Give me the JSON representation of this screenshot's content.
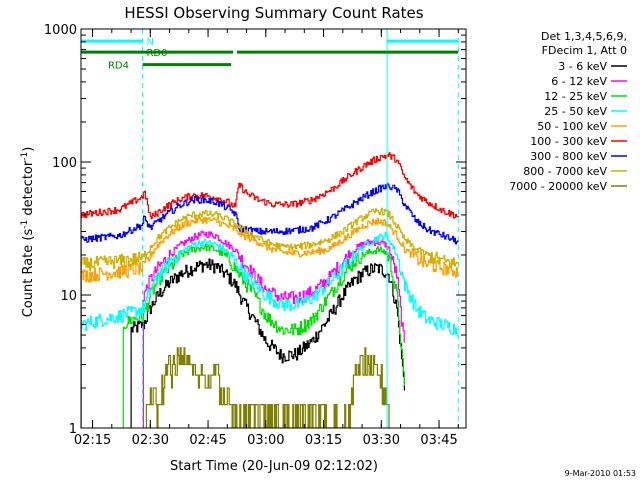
{
  "chart_data": {
    "type": "line",
    "title": "HESSI Observing Summary Count Rates",
    "xlabel": "Start Time (20-Jun-09 02:12:02)",
    "ylabel_main": "Count Rate (s",
    "ylabel_sup1": "-1",
    "ylabel_mid": " detector",
    "ylabel_sup2": "-1",
    "ylabel_end": ")",
    "x_unit": "minutes since 02:12",
    "xlim": [
      0,
      100
    ],
    "ylim": [
      1,
      1000
    ],
    "yscale": "log",
    "x_ticks": [
      {
        "label": "02:15",
        "value": 3
      },
      {
        "label": "02:30",
        "value": 18
      },
      {
        "label": "02:45",
        "value": 33
      },
      {
        "label": "03:00",
        "value": 48
      },
      {
        "label": "03:15",
        "value": 63
      },
      {
        "label": "03:30",
        "value": 78
      },
      {
        "label": "03:45",
        "value": 93
      }
    ],
    "y_ticks": [
      {
        "label": "1",
        "value": 1
      },
      {
        "label": "10",
        "value": 10
      },
      {
        "label": "100",
        "value": 100
      },
      {
        "label": "1000",
        "value": 1000
      }
    ],
    "legend_header": [
      "Det 1,3,4,5,6,9,",
      "FDecim 1, Att 0"
    ],
    "legend_placement": "right",
    "vlines_solid": [
      0,
      79.5
    ],
    "vlines_dashed": [
      16,
      98
    ],
    "flags": [
      {
        "label": "N",
        "color": "#00ffff",
        "segments": [
          [
            0,
            16
          ],
          [
            79.5,
            98
          ]
        ],
        "level": 810,
        "label_x": 17
      },
      {
        "label": "RD0",
        "color": "#008000",
        "segments": [
          [
            0,
            39.5
          ],
          [
            40.5,
            98
          ]
        ],
        "level": 670,
        "label_x": 17
      },
      {
        "label": "RD4",
        "color": "#008000",
        "segments": [
          [
            16,
            39
          ]
        ],
        "level": 540,
        "label_x": 7
      }
    ],
    "series": [
      {
        "name": "3 - 6 keV",
        "color": "#000000",
        "x": [
          13,
          16.2,
          18,
          20,
          23,
          26,
          29,
          32,
          35,
          38,
          40,
          42,
          45,
          48,
          52,
          56,
          60,
          64,
          68,
          71,
          73,
          75,
          77,
          79,
          80,
          82,
          84
        ],
        "y": [
          5.5,
          6,
          8,
          10,
          12.5,
          14.5,
          16,
          17,
          16.5,
          14,
          12,
          9,
          6.5,
          4.5,
          3.5,
          3.6,
          4.5,
          6.5,
          10,
          13,
          14.5,
          15.5,
          16,
          15,
          14,
          8,
          2
        ]
      },
      {
        "name": "6 - 12 keV",
        "color": "#ff00ff",
        "x": [
          16.2,
          18,
          20,
          23,
          26,
          29,
          32,
          35,
          38,
          40,
          42,
          45,
          48,
          52,
          56,
          60,
          64,
          68,
          71,
          73,
          75,
          77,
          79,
          80,
          82,
          84
        ],
        "y": [
          10,
          13,
          16,
          20,
          24,
          27,
          29,
          28,
          24,
          22,
          18,
          14,
          11,
          9.5,
          9.5,
          10.5,
          13,
          18,
          22,
          24,
          25,
          25,
          24,
          22,
          14,
          4
        ]
      },
      {
        "name": "12 - 25 keV",
        "color": "#00e000",
        "x": [
          11,
          13,
          16.2,
          18,
          20,
          23,
          26,
          29,
          32,
          35,
          38,
          40,
          42,
          45,
          48,
          52,
          56,
          60,
          64,
          68,
          71,
          73,
          75,
          77,
          79,
          80,
          82,
          84
        ],
        "y": [
          6,
          6.5,
          7,
          10,
          13,
          16,
          20,
          22,
          23,
          22,
          19,
          16,
          13,
          10,
          7,
          5.5,
          5.5,
          6.5,
          9.5,
          14,
          18,
          20,
          21,
          22,
          21,
          19,
          10,
          2
        ]
      },
      {
        "name": "25 - 50 keV",
        "color": "#00ffff",
        "x": [
          0,
          5,
          10,
          14,
          16.2,
          18,
          20,
          23,
          26,
          29,
          32,
          35,
          38,
          40,
          42,
          45,
          48,
          52,
          56,
          60,
          64,
          68,
          71,
          73,
          75,
          77,
          79,
          80,
          82,
          84,
          87,
          90,
          94,
          98
        ],
        "y": [
          6,
          6.5,
          7,
          7.5,
          8,
          11,
          14,
          18,
          21,
          24,
          25,
          24,
          21,
          18,
          15,
          12,
          10,
          8.5,
          8.5,
          9.5,
          12,
          16,
          20,
          23,
          25,
          27,
          28,
          26,
          20,
          12,
          8,
          6.5,
          6,
          5.5
        ]
      },
      {
        "name": "50 - 100 keV",
        "color": "#ffa000",
        "x": [
          0,
          10,
          16.2,
          18,
          20,
          23,
          26,
          29,
          32,
          35,
          38,
          40,
          42,
          45,
          48,
          52,
          56,
          60,
          64,
          68,
          71,
          73,
          75,
          77,
          79,
          80,
          82,
          84,
          87,
          90,
          94,
          98
        ],
        "y": [
          14,
          15,
          16,
          20,
          24,
          29,
          33,
          36,
          37,
          36,
          33,
          31,
          28,
          26,
          23,
          21,
          20.5,
          21,
          22,
          26,
          30,
          33,
          35,
          36,
          35,
          33,
          28,
          22,
          19,
          17,
          16,
          15
        ]
      },
      {
        "name": "100 - 300 keV",
        "color": "#ff0000",
        "x": [
          0,
          10,
          16,
          16.2,
          18,
          20,
          23,
          26,
          29,
          32,
          35,
          38,
          40,
          41,
          43,
          46,
          50,
          55,
          60,
          65,
          70,
          74,
          78,
          80,
          82,
          84,
          87,
          90,
          94,
          98
        ],
        "y": [
          40,
          44,
          55,
          63,
          38,
          42,
          48,
          53,
          56,
          56,
          54,
          50,
          46,
          68,
          58,
          52,
          48,
          48,
          52,
          62,
          80,
          96,
          110,
          112,
          104,
          76,
          58,
          50,
          43,
          39
        ]
      },
      {
        "name": "300 - 800 keV",
        "color": "#0000ff",
        "x": [
          0,
          10,
          16,
          16.2,
          18,
          20,
          23,
          26,
          29,
          32,
          35,
          38,
          40,
          41,
          43,
          46,
          50,
          55,
          60,
          65,
          70,
          74,
          78,
          80,
          82,
          84,
          87,
          90,
          94,
          98
        ],
        "y": [
          26,
          28,
          34,
          38,
          32,
          36,
          42,
          48,
          52,
          52,
          50,
          45,
          41,
          32,
          31,
          30,
          30,
          30.5,
          32,
          38,
          47,
          56,
          64,
          66,
          62,
          48,
          36,
          31,
          28,
          25
        ]
      },
      {
        "name": "800 - 7000 keV",
        "color": "#d0b000",
        "x": [
          0,
          10,
          16.2,
          18,
          20,
          23,
          26,
          29,
          32,
          35,
          38,
          40,
          42,
          45,
          48,
          52,
          56,
          60,
          64,
          68,
          71,
          73,
          75,
          77,
          79,
          80,
          82,
          84,
          87,
          90,
          94,
          98
        ],
        "y": [
          17,
          18,
          19,
          23,
          27,
          32,
          37,
          40,
          41,
          40,
          37,
          34,
          31,
          28,
          25,
          23,
          23,
          24,
          26,
          30,
          35,
          38,
          41,
          43,
          42,
          40,
          33,
          26,
          22,
          20,
          18,
          17
        ]
      },
      {
        "name": "7000 - 20000 keV",
        "color": "#808000",
        "x": [
          17,
          18,
          20,
          22,
          24,
          26,
          28,
          29,
          31,
          33,
          34,
          35,
          36,
          37,
          38,
          39,
          40,
          69,
          70,
          71,
          72,
          73,
          74,
          75,
          76,
          77,
          78,
          79,
          80
        ],
        "y": [
          1,
          1.5,
          1.5,
          2.5,
          2.8,
          3,
          3,
          2.2,
          2.5,
          2,
          2.5,
          3.2,
          2,
          1.5,
          1.8,
          1.5,
          1,
          1,
          1.5,
          2.5,
          2.5,
          3,
          2.8,
          2.5,
          3,
          2.5,
          2,
          1.5,
          1
        ]
      }
    ]
  },
  "footer_timestamp": "9-Mar-2010 01:53"
}
